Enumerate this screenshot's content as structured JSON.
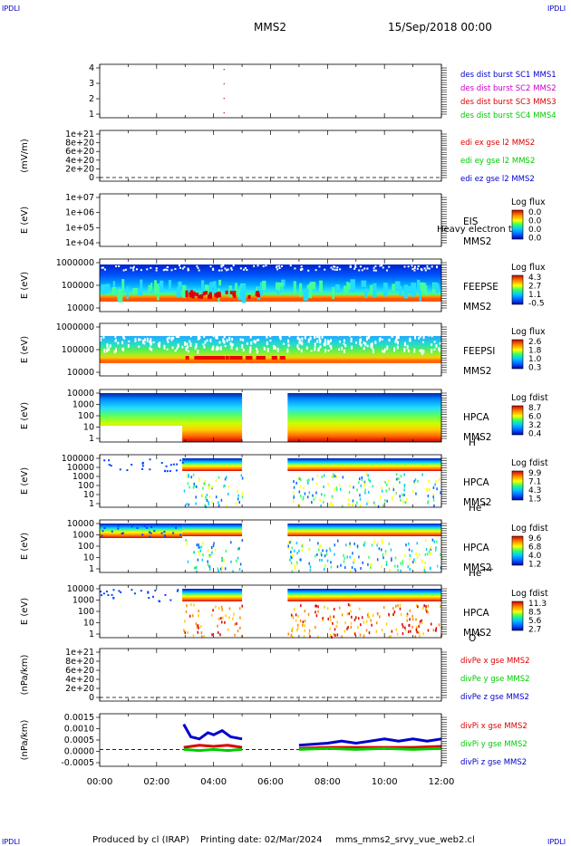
{
  "header": {
    "corner_tl": "IPDLI",
    "corner_tr": "IPDLI",
    "corner_bl": "IPDLI",
    "corner_br": "IPDLI",
    "spacecraft": "MMS2",
    "date": "15/Sep/2018 00:00"
  },
  "footer": {
    "produced_by": "Produced by cl (IRAP)",
    "printing_date": "Printing date: 02/Mar/2024",
    "filename": "mms_mms2_srvy_vue_web2.cl"
  },
  "colors": {
    "blue": "#0000cc",
    "magenta": "#cc00cc",
    "red": "#dd0000",
    "green": "#00cc00"
  },
  "chart_data": {
    "type": "heatmap",
    "time_axis": {
      "ticks": [
        "00:00",
        "02:00",
        "04:00",
        "06:00",
        "08:00",
        "10:00",
        "12:00"
      ],
      "range_hours": [
        0,
        12
      ]
    },
    "panels": [
      {
        "id": "burst",
        "ylabel": "",
        "yticks": [
          "4",
          "3",
          "2",
          "1"
        ],
        "legend": [
          {
            "text": "des dist burst SC1 MMS1",
            "color": "#0000cc"
          },
          {
            "text": "des dist burst SC2 MMS2",
            "color": "#cc00cc"
          },
          {
            "text": "des dist burst SC3 MMS3",
            "color": "#dd0000"
          },
          {
            "text": "des dist burst SC4 MMS4",
            "color": "#00cc00"
          }
        ],
        "points": [
          {
            "t": 4.35,
            "y": 4
          },
          {
            "t": 4.35,
            "y": 3
          },
          {
            "t": 4.35,
            "y": 2
          },
          {
            "t": 4.35,
            "y": 1
          }
        ]
      },
      {
        "id": "edi",
        "ylabel": "(mV/m)",
        "yticks": [
          "1e+21",
          "8e+20",
          "6e+20",
          "4e+20",
          "2e+20",
          "0"
        ],
        "legend": [
          {
            "text": "edi ex gse l2 MMS2",
            "color": "#dd0000"
          },
          {
            "text": "edi ey gse l2 MMS2",
            "color": "#00cc00"
          },
          {
            "text": "edi ez gse l2 MMS2",
            "color": "#0000cc"
          }
        ]
      },
      {
        "id": "eis",
        "ylabel": "E (eV)",
        "yticks": [
          "1e+07",
          "1e+06",
          "1e+05",
          "1e+04"
        ],
        "label_lines": [
          "EIS",
          "MMS2"
        ],
        "overlay_text": "Heavy electron to",
        "colorbar": {
          "title": "Log flux",
          "ticks": [
            "0.0",
            "0.0",
            "0.0",
            "0.0"
          ]
        }
      },
      {
        "id": "feeps_e",
        "ylabel": "E (eV)",
        "yticks": [
          "1000000",
          "100000",
          "10000"
        ],
        "label_lines": [
          "FEEPSE",
          "MMS2"
        ],
        "colorbar": {
          "title": "Log flux",
          "ticks": [
            "4.3",
            "2.7",
            "1.1",
            "-0.5"
          ]
        }
      },
      {
        "id": "feeps_i",
        "ylabel": "E (eV)",
        "yticks": [
          "1000000",
          "100000",
          "10000"
        ],
        "label_lines": [
          "FEEPSI",
          "MMS2"
        ],
        "colorbar": {
          "title": "Log flux",
          "ticks": [
            "2.6",
            "1.8",
            "1.0",
            "0.3"
          ]
        }
      },
      {
        "id": "hpca_h",
        "ylabel": "E (eV)",
        "yticks": [
          "10000",
          "1000",
          "100",
          "10",
          "1"
        ],
        "label_lines": [
          "HPCA",
          "MMS2"
        ],
        "species": "H",
        "species_sup": "+",
        "colorbar": {
          "title": "Log fdist",
          "ticks": [
            "8.7",
            "6.0",
            "3.2",
            "0.4"
          ]
        },
        "gaps": [
          [
            5.0,
            6.6
          ]
        ]
      },
      {
        "id": "hpca_he",
        "ylabel": "E (eV)",
        "yticks": [
          "100000",
          "10000",
          "1000",
          "100",
          "10",
          "1"
        ],
        "label_lines": [
          "HPCA",
          "MMS2"
        ],
        "species": "He",
        "species_sup": "+",
        "colorbar": {
          "title": "Log fdist",
          "ticks": [
            "9.9",
            "7.1",
            "4.3",
            "1.5"
          ]
        },
        "gaps": [
          [
            5.0,
            6.6
          ]
        ]
      },
      {
        "id": "hpca_hepp",
        "ylabel": "E (eV)",
        "yticks": [
          "10000",
          "1000",
          "100",
          "10",
          "1"
        ],
        "label_lines": [
          "HPCA",
          "MMS2"
        ],
        "species": "He",
        "species_sup": "++",
        "colorbar": {
          "title": "Log fdist",
          "ticks": [
            "9.6",
            "6.8",
            "4.0",
            "1.2"
          ]
        },
        "gaps": [
          [
            5.0,
            6.6
          ]
        ]
      },
      {
        "id": "hpca_o",
        "ylabel": "E (eV)",
        "yticks": [
          "10000",
          "1000",
          "100",
          "10",
          "1"
        ],
        "label_lines": [
          "HPCA",
          "MMS2"
        ],
        "species": "O",
        "species_sup": "+",
        "colorbar": {
          "title": "Log fdist",
          "ticks": [
            "11.3",
            "8.5",
            "5.6",
            "2.7"
          ]
        },
        "gaps": [
          [
            5.0,
            6.6
          ]
        ]
      },
      {
        "id": "divpe",
        "ylabel": "(nPa/km)",
        "yticks": [
          "1e+21",
          "8e+20",
          "6e+20",
          "4e+20",
          "2e+20",
          "0"
        ],
        "legend": [
          {
            "text": "divPe x gse MMS2",
            "color": "#dd0000"
          },
          {
            "text": "divPe y gse MMS2",
            "color": "#00cc00"
          },
          {
            "text": "divPe z gse MMS2",
            "color": "#0000cc"
          }
        ]
      },
      {
        "id": "divpi",
        "ylabel": "(nPa/km)",
        "yticks": [
          "0.0015",
          "0.0010",
          "0.0005",
          "0.0000",
          "-0.0005"
        ],
        "ylim": [
          -0.0008,
          0.0017
        ],
        "legend": [
          {
            "text": "divPi x gse MMS2",
            "color": "#dd0000"
          },
          {
            "text": "divPi y gse MMS2",
            "color": "#00cc00"
          },
          {
            "text": "divPi z gse MMS2",
            "color": "#0000cc"
          }
        ],
        "series": [
          {
            "name": "divPi x gse MMS2",
            "color": "#dd0000",
            "segments": [
              [
                [
                  2.95,
                  0.0001
                ],
                [
                  3.5,
                  0.0002
                ],
                [
                  4.0,
                  0.00015
                ],
                [
                  4.5,
                  0.0002
                ],
                [
                  5.0,
                  0.0001
                ]
              ],
              [
                [
                  7.0,
                  5e-05
                ],
                [
                  8.0,
                  0.0001
                ],
                [
                  9.0,
                  0.0001
                ],
                [
                  10.0,
                  0.0001
                ],
                [
                  11.0,
                  0.0001
                ],
                [
                  12.0,
                  0.00015
                ]
              ]
            ]
          },
          {
            "name": "divPi y gse MMS2",
            "color": "#00cc00",
            "segments": [
              [
                [
                  2.95,
                  0.0
                ],
                [
                  3.5,
                  -5e-05
                ],
                [
                  4.0,
                  0.0
                ],
                [
                  4.5,
                  -5e-05
                ],
                [
                  5.0,
                  0.0
                ]
              ],
              [
                [
                  7.0,
                  0.0
                ],
                [
                  8.0,
                  5e-05
                ],
                [
                  9.0,
                  0.0
                ],
                [
                  10.0,
                  5e-05
                ],
                [
                  11.0,
                  0.0
                ],
                [
                  12.0,
                  5e-05
                ]
              ]
            ]
          },
          {
            "name": "divPi z gse MMS2",
            "color": "#0000cc",
            "segments": [
              [
                [
                  2.95,
                  0.0012
                ],
                [
                  3.2,
                  0.0006
                ],
                [
                  3.5,
                  0.0005
                ],
                [
                  3.8,
                  0.0008
                ],
                [
                  4.0,
                  0.0007
                ],
                [
                  4.3,
                  0.0009
                ],
                [
                  4.6,
                  0.0006
                ],
                [
                  5.0,
                  0.0005
                ]
              ],
              [
                [
                  7.0,
                  0.0002
                ],
                [
                  7.5,
                  0.00025
                ],
                [
                  8.0,
                  0.0003
                ],
                [
                  8.5,
                  0.0004
                ],
                [
                  9.0,
                  0.0003
                ],
                [
                  9.5,
                  0.0004
                ],
                [
                  10.0,
                  0.0005
                ],
                [
                  10.5,
                  0.0004
                ],
                [
                  11.0,
                  0.0005
                ],
                [
                  11.5,
                  0.0004
                ],
                [
                  12.0,
                  0.0005
                ]
              ]
            ]
          }
        ]
      }
    ]
  }
}
